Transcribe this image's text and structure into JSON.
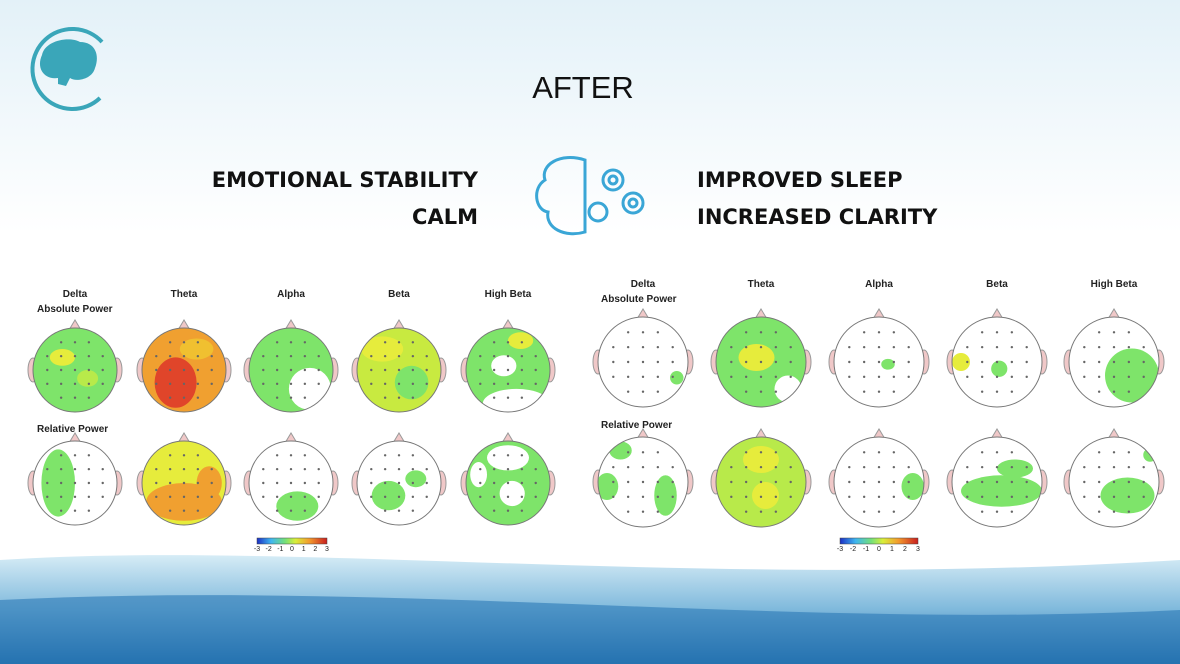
{
  "header": {
    "title": "AFTER"
  },
  "benefits": {
    "left": [
      "EMOTIONAL STABILITY",
      "CALM"
    ],
    "right": [
      "IMPROVED SLEEP",
      "INCREASED CLARITY"
    ]
  },
  "panels": [
    {
      "bands": [
        "Delta",
        "Theta",
        "Alpha",
        "Beta",
        "High Beta"
      ],
      "rows": [
        "Absolute Power",
        "Relative Power"
      ],
      "scale": [
        "-3",
        "-2",
        "-1",
        "0",
        "1",
        "2",
        "3"
      ]
    },
    {
      "bands": [
        "Delta",
        "Theta",
        "Alpha",
        "Beta",
        "High Beta"
      ],
      "rows": [
        "Absolute Power",
        "Relative Power"
      ],
      "scale": [
        "-3",
        "-2",
        "-1",
        "0",
        "1",
        "2",
        "3"
      ]
    }
  ]
}
